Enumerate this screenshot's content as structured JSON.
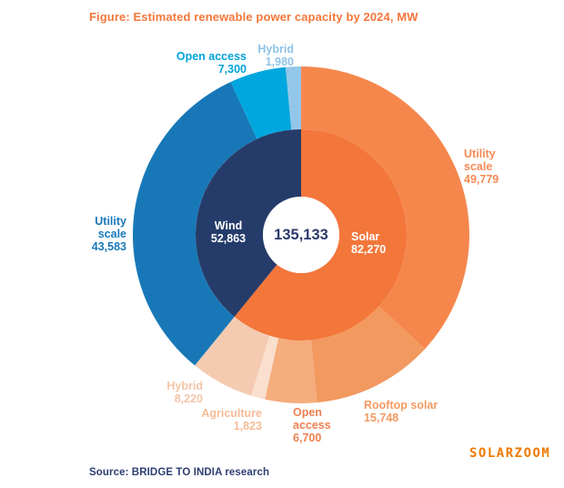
{
  "page": {
    "background": "#ffffff"
  },
  "title": {
    "text": "Figure: Estimated renewable power capacity by 2024, MW",
    "color": "#f4773b"
  },
  "chart_data": {
    "type": "pie",
    "subtype": "nested-donut",
    "title": "Figure: Estimated renewable power capacity by 2024, MW",
    "units": "MW",
    "direction": "clockwise",
    "start_angle_deg_from_top": 0,
    "center_total": {
      "value": 135133,
      "label": "135,133"
    },
    "inner_ring": [
      {
        "name": "Solar",
        "value": 82270,
        "display": "82,270",
        "color": "#f3763a"
      },
      {
        "name": "Wind",
        "value": 52863,
        "display": "52,863",
        "color": "#253c6a"
      }
    ],
    "outer_ring": [
      {
        "name": "Utility scale solar",
        "value": 49779,
        "display": "49,779",
        "color": "#f5874d"
      },
      {
        "name": "Rooftop solar",
        "value": 15748,
        "display": "15,748",
        "color": "#f29960"
      },
      {
        "name": "Open access solar",
        "value": 6700,
        "display": "6,700",
        "color": "#f5ad7d"
      },
      {
        "name": "Agriculture",
        "value": 1823,
        "display": "1,823",
        "color": "#fadfce"
      },
      {
        "name": "Hybrid solar",
        "value": 8220,
        "display": "8,220",
        "color": "#f4cbb1"
      },
      {
        "name": "Utility scale wind",
        "value": 43583,
        "display": "43,583",
        "color": "#1878b7"
      },
      {
        "name": "Open access wind",
        "value": 7300,
        "display": "7,300",
        "color": "#00a7de"
      },
      {
        "name": "Hybrid wind",
        "value": 1980,
        "display": "1,980",
        "color": "#93c7ea"
      }
    ]
  },
  "callouts": {
    "open_access_wind": {
      "text": "Open access\n7,300",
      "color": "#00a3da"
    },
    "hybrid_wind": {
      "text": "Hybrid\n1,980",
      "color": "#8fc3e9"
    },
    "utility_solar": {
      "text": "Utility\nscale\n49,779",
      "color": "#f58a54"
    },
    "utility_wind": {
      "text": "Utility\nscale\n43,583",
      "color": "#1878b8"
    },
    "wind_center": {
      "text": "Wind\n52,863",
      "color": "#ffffff"
    },
    "total_center": {
      "text": "135,133",
      "color": "#2b3a6b"
    },
    "solar_center": {
      "text": "Solar\n82,270",
      "color": "#ffffff"
    },
    "hybrid_solar": {
      "text": "Hybrid\n8,220",
      "color": "#f3c5a7"
    },
    "agriculture": {
      "text": "Agriculture\n1,823",
      "color": "#f5bb97"
    },
    "open_access_solar": {
      "text": "Open\naccess\n6,700",
      "color": "#ee7f50"
    },
    "rooftop_solar": {
      "text": "Rooftop solar\n15,748",
      "color": "#f49a62"
    }
  },
  "footer": {
    "source": "Source: BRIDGE TO INDIA research",
    "color": "#2d3f72"
  },
  "watermark": {
    "text": "SOLARZOOM",
    "color": "#ef7a00"
  }
}
